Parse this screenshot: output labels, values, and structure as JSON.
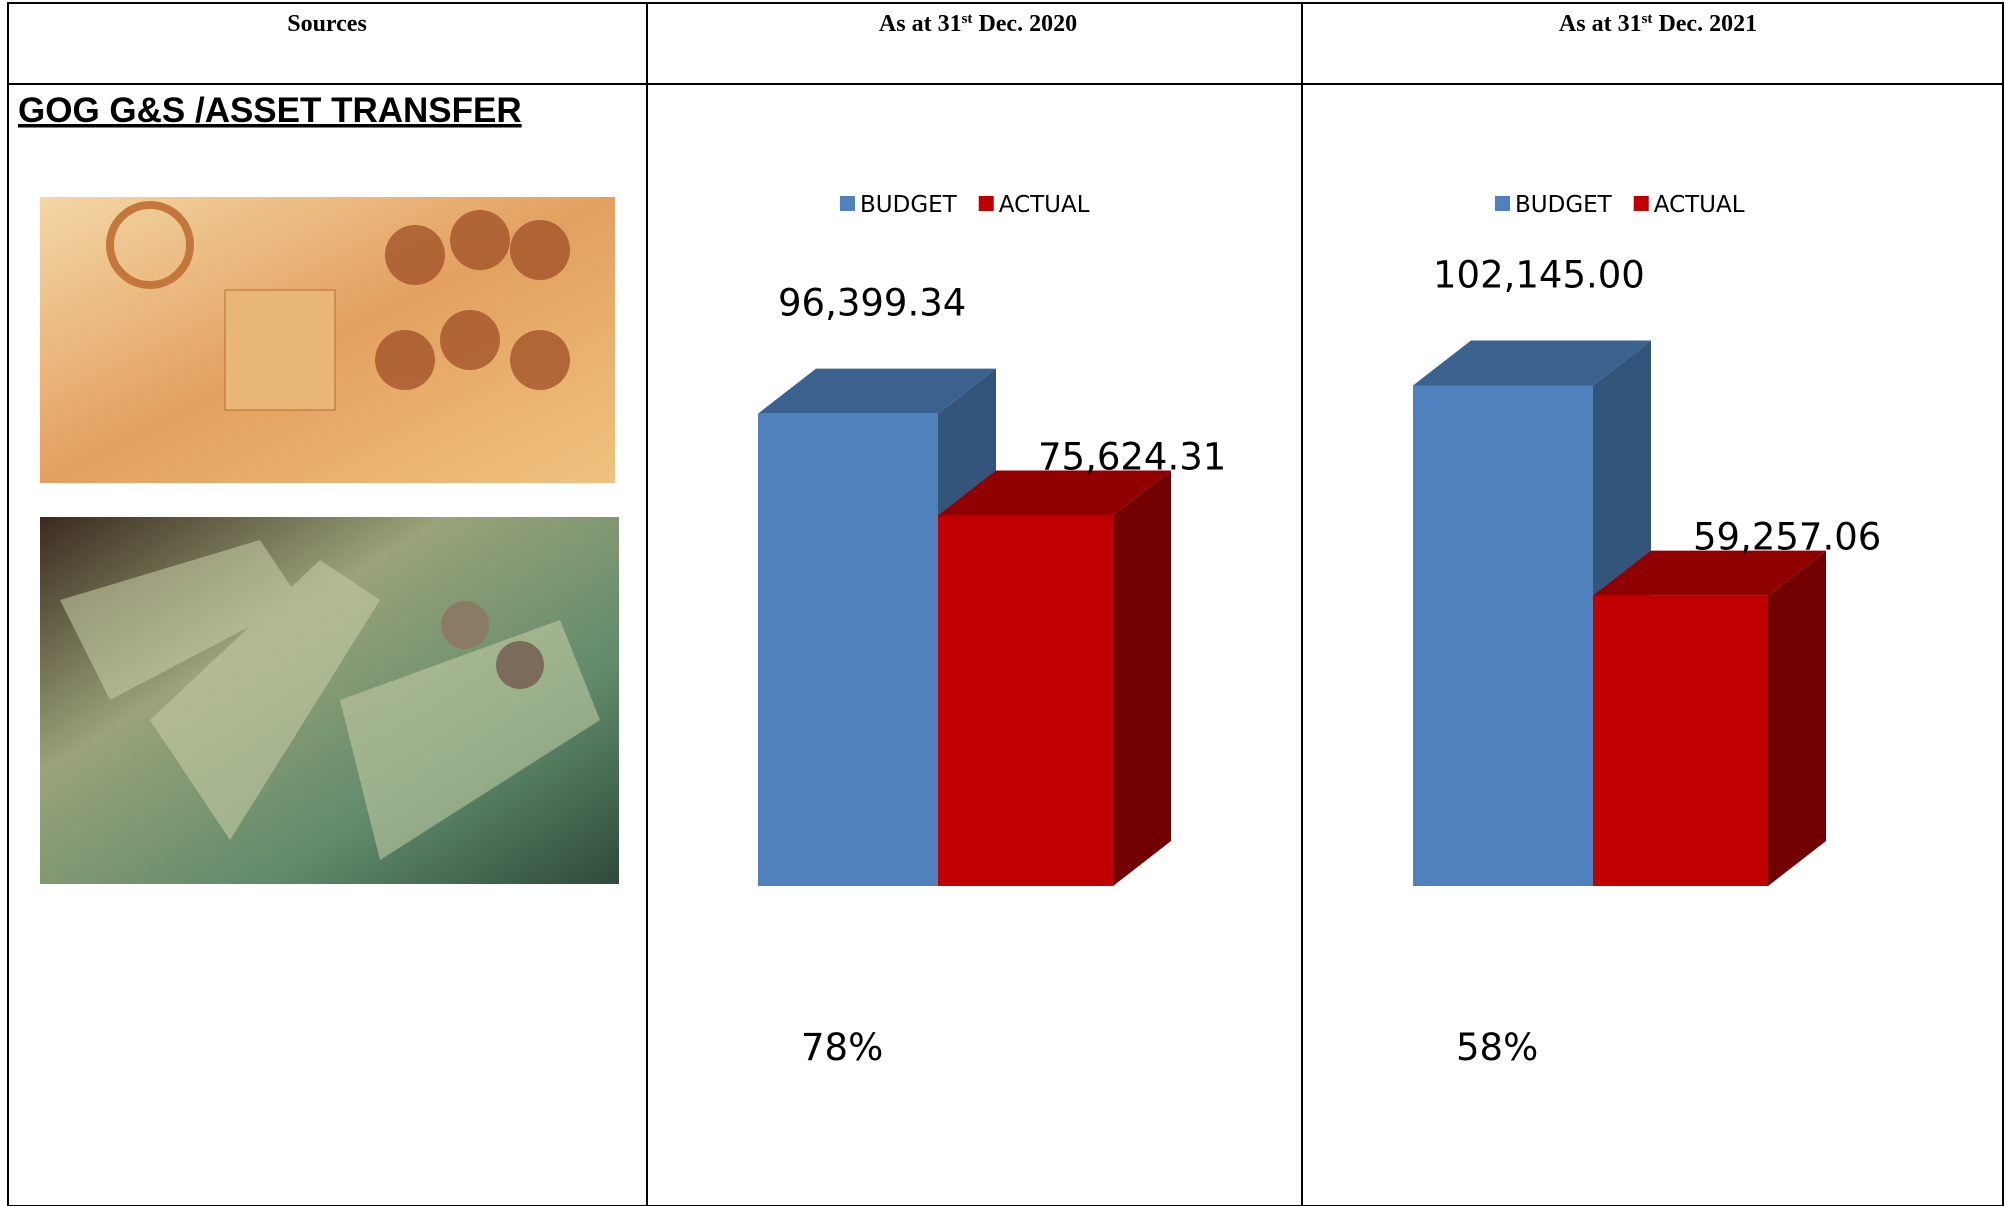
{
  "header": [
    {
      "text": "Sources"
    },
    {
      "before": "As at 31",
      "sup": "st",
      "after": " Dec. 2020"
    },
    {
      "before": "As at 31",
      "sup": "st",
      "after": " Dec. 2021"
    }
  ],
  "section_title": "GOG G&S /ASSET TRANSFER",
  "chart_data": [
    {
      "type": "bar",
      "ylim": [
        0,
        100000
      ],
      "annotation": "78%",
      "series": [
        {
          "name": "BUDGET",
          "color": "#4f81bd",
          "values": [
            96399.34
          ],
          "value_labels": [
            "96,399.34"
          ]
        },
        {
          "name": "ACTUAL",
          "color": "#c00000",
          "values": [
            75624.31
          ],
          "value_labels": [
            "75,624.31"
          ]
        }
      ]
    },
    {
      "type": "bar",
      "ylim": [
        0,
        100000
      ],
      "annotation": "58%",
      "series": [
        {
          "name": "BUDGET",
          "color": "#4f81bd",
          "values": [
            102145.0
          ],
          "value_labels": [
            "102,145.00"
          ]
        },
        {
          "name": "ACTUAL",
          "color": "#c00000",
          "values": [
            59257.06
          ],
          "value_labels": [
            "59,257.06"
          ]
        }
      ]
    }
  ]
}
